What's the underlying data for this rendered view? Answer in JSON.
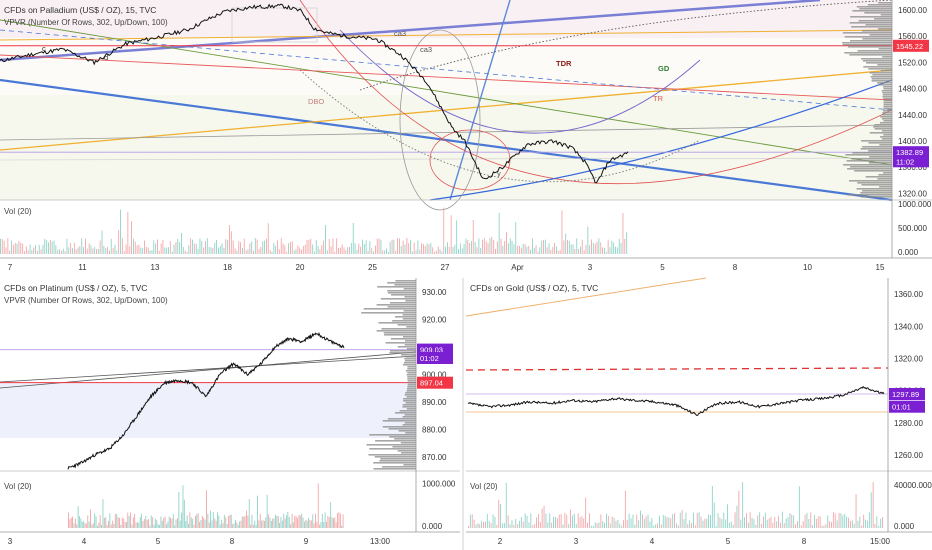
{
  "chart_data": [
    {
      "type": "line",
      "title": "CFDs on Palladium (US$ / OZ), 15, TVC",
      "indicator": "VPVR (Number Of Rows, 302, Up/Down, 100)",
      "volume_label": "Vol (20)",
      "x_tick_labels": [
        "7",
        "11",
        "13",
        "18",
        "20",
        "25",
        "27",
        "Apr",
        "3",
        "5",
        "8",
        "10",
        "15"
      ],
      "y_ticks": [
        1320,
        1360,
        1400,
        1440,
        1480,
        1520,
        1560,
        1600
      ],
      "ylim": [
        1310,
        1615
      ],
      "volume_ticks": [
        "1000.000",
        "500.000",
        "0.000"
      ],
      "volume_lim": [
        0,
        1000
      ],
      "price_badges": [
        {
          "text": "1545.22",
          "value": 1545.22,
          "color": "#f23645"
        },
        {
          "text": "1382.89",
          "value": 1382.89,
          "color": "#7b1fd2"
        },
        {
          "text": "11:02",
          "value": 1369,
          "color": "#7b1fd2"
        }
      ],
      "annotations": [
        "TDR",
        "GD",
        "TR",
        "c",
        "d",
        "ca3",
        "ca3",
        "y",
        "DBO"
      ],
      "x": [
        0,
        0.05,
        0.1,
        0.15,
        0.2,
        0.25,
        0.3,
        0.33,
        0.36,
        0.4,
        0.45,
        0.48,
        0.5,
        0.52,
        0.55,
        0.6,
        0.64,
        0.68,
        0.72,
        0.74,
        0.77,
        0.8,
        0.84,
        0.88,
        0.91,
        0.93,
        0.95,
        0.97,
        1.0
      ],
      "values": [
        1522,
        1532,
        1540,
        1520,
        1548,
        1558,
        1570,
        1585,
        1598,
        1604,
        1606,
        1598,
        1572,
        1565,
        1560,
        1555,
        1530,
        1490,
        1420,
        1400,
        1340,
        1360,
        1395,
        1400,
        1390,
        1370,
        1335,
        1370,
        1382
      ]
    },
    {
      "type": "line",
      "title": "CFDs on Platinum (US$ / OZ), 5, TVC",
      "indicator": "VPVR (Number Of Rows, 302, Up/Down, 100)",
      "volume_label": "Vol (20)",
      "x_tick_labels": [
        "3",
        "4",
        "5",
        "8",
        "9",
        "13:00"
      ],
      "y_ticks": [
        870,
        880,
        890,
        900,
        910,
        920,
        930
      ],
      "ylim": [
        865,
        935
      ],
      "volume_ticks": [
        "1000.000",
        "0.000"
      ],
      "volume_lim": [
        0,
        1200
      ],
      "price_badges": [
        {
          "text": "909.03",
          "value": 909.03,
          "color": "#7b1fd2"
        },
        {
          "text": "01:02",
          "value": 906,
          "color": "#7b1fd2"
        },
        {
          "text": "897.04",
          "value": 897.04,
          "color": "#f23645"
        }
      ],
      "x": [
        0,
        0.05,
        0.1,
        0.15,
        0.2,
        0.25,
        0.3,
        0.35,
        0.4,
        0.45,
        0.5,
        0.55,
        0.6,
        0.65,
        0.7,
        0.75,
        0.8,
        0.85,
        0.9,
        0.95,
        1.0
      ],
      "values": [
        866,
        868,
        871,
        873,
        878,
        885,
        892,
        897,
        898,
        897,
        892,
        900,
        904,
        900,
        904,
        910,
        913,
        912,
        915,
        912,
        910
      ]
    },
    {
      "type": "line",
      "title": "CFDs on Gold (US$ / OZ), 5, TVC",
      "volume_label": "Vol (20)",
      "x_tick_labels": [
        "2",
        "3",
        "4",
        "5",
        "8",
        "15:00"
      ],
      "y_ticks": [
        1260,
        1280,
        1300,
        1320,
        1340,
        1360
      ],
      "ylim": [
        1250,
        1370
      ],
      "volume_ticks": [
        "40000.000",
        "0.000"
      ],
      "volume_lim": [
        0,
        50000
      ],
      "price_badges": [
        {
          "text": "1297.89",
          "value": 1297.89,
          "color": "#7b1fd2"
        },
        {
          "text": "01:01",
          "value": 1290,
          "color": "#7b1fd2"
        }
      ],
      "x": [
        0,
        0.05,
        0.1,
        0.15,
        0.2,
        0.25,
        0.3,
        0.35,
        0.4,
        0.45,
        0.5,
        0.55,
        0.6,
        0.65,
        0.7,
        0.75,
        0.8,
        0.85,
        0.9,
        0.95,
        1.0
      ],
      "values": [
        1292,
        1290,
        1291,
        1293,
        1292,
        1294,
        1293,
        1295,
        1294,
        1293,
        1291,
        1285,
        1292,
        1293,
        1290,
        1292,
        1294,
        1295,
        1297,
        1302,
        1298
      ]
    }
  ]
}
